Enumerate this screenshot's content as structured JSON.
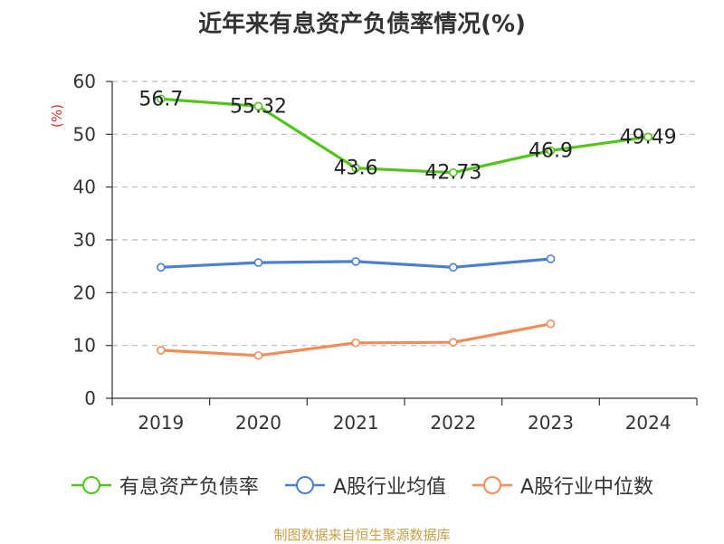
{
  "chart_data": {
    "type": "line",
    "title": "近年来有息资产负债率情况(%)",
    "ylabel": "(%)",
    "xlabel": "",
    "categories": [
      "2019",
      "2020",
      "2021",
      "2022",
      "2023",
      "2024"
    ],
    "ylim": [
      0,
      60
    ],
    "yticks": [
      "0",
      "10",
      "20",
      "30",
      "40",
      "50",
      "60"
    ],
    "grid": true,
    "legend_position": "bottom",
    "series": [
      {
        "name": "有息资产负债率",
        "color": "#52c41a",
        "values": [
          56.7,
          55.32,
          43.6,
          42.73,
          46.9,
          49.49
        ],
        "labels": [
          "56.7",
          "55.32",
          "43.6",
          "42.73",
          "46.9",
          "49.49"
        ]
      },
      {
        "name": "A股行业均值",
        "color": "#4a7fd6",
        "values": [
          24.8,
          25.7,
          25.9,
          24.8,
          26.4,
          null
        ]
      },
      {
        "name": "A股行业中位数",
        "color": "#f28c5a",
        "values": [
          9.1,
          8.1,
          10.5,
          10.6,
          14.1,
          null
        ]
      }
    ]
  },
  "source": "制图数据来自恒生聚源数据库"
}
